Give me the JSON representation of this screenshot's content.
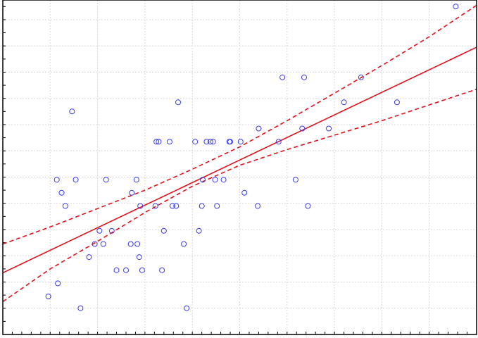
{
  "chart_data": {
    "type": "scatter",
    "title": "",
    "xlabel": "",
    "ylabel": "",
    "xlim": [
      0,
      100
    ],
    "ylim": [
      0,
      25.5
    ],
    "grid": true,
    "legend": "none",
    "colors": {
      "points": "#3a3aef",
      "fit": "#e8101a",
      "confidence_band": "#e8101a",
      "grid": "#d8d8d8"
    },
    "points": [
      {
        "x": 9.6,
        "y": 2.9
      },
      {
        "x": 11.6,
        "y": 3.9
      },
      {
        "x": 16.4,
        "y": 2.0
      },
      {
        "x": 11.4,
        "y": 11.8
      },
      {
        "x": 12.4,
        "y": 10.8
      },
      {
        "x": 13.2,
        "y": 9.8
      },
      {
        "x": 14.6,
        "y": 17.0
      },
      {
        "x": 15.4,
        "y": 11.8
      },
      {
        "x": 18.2,
        "y": 5.9
      },
      {
        "x": 19.4,
        "y": 6.9
      },
      {
        "x": 20.4,
        "y": 7.9
      },
      {
        "x": 21.2,
        "y": 6.9
      },
      {
        "x": 21.8,
        "y": 11.8
      },
      {
        "x": 23.0,
        "y": 7.9
      },
      {
        "x": 24.0,
        "y": 4.9
      },
      {
        "x": 26.0,
        "y": 4.9
      },
      {
        "x": 27.0,
        "y": 6.9
      },
      {
        "x": 27.2,
        "y": 10.8
      },
      {
        "x": 28.2,
        "y": 11.8
      },
      {
        "x": 28.4,
        "y": 6.9
      },
      {
        "x": 28.8,
        "y": 5.9
      },
      {
        "x": 29.0,
        "y": 9.8
      },
      {
        "x": 29.4,
        "y": 4.9
      },
      {
        "x": 32.2,
        "y": 9.8
      },
      {
        "x": 32.4,
        "y": 14.7
      },
      {
        "x": 32.9,
        "y": 14.7
      },
      {
        "x": 33.6,
        "y": 4.9
      },
      {
        "x": 34.0,
        "y": 7.9
      },
      {
        "x": 35.2,
        "y": 14.7
      },
      {
        "x": 35.8,
        "y": 9.8
      },
      {
        "x": 36.6,
        "y": 9.8
      },
      {
        "x": 37.0,
        "y": 17.7
      },
      {
        "x": 38.2,
        "y": 6.9
      },
      {
        "x": 38.8,
        "y": 2.0
      },
      {
        "x": 40.6,
        "y": 14.7
      },
      {
        "x": 41.4,
        "y": 7.9
      },
      {
        "x": 42.0,
        "y": 9.8
      },
      {
        "x": 42.2,
        "y": 11.8
      },
      {
        "x": 43.0,
        "y": 14.7
      },
      {
        "x": 43.8,
        "y": 14.7
      },
      {
        "x": 44.4,
        "y": 14.7
      },
      {
        "x": 44.8,
        "y": 11.8
      },
      {
        "x": 45.2,
        "y": 9.8
      },
      {
        "x": 46.6,
        "y": 11.8
      },
      {
        "x": 47.8,
        "y": 14.7
      },
      {
        "x": 48.0,
        "y": 14.7
      },
      {
        "x": 50.2,
        "y": 14.7
      },
      {
        "x": 51.0,
        "y": 10.8
      },
      {
        "x": 53.8,
        "y": 9.8
      },
      {
        "x": 54.0,
        "y": 15.7
      },
      {
        "x": 58.2,
        "y": 14.7
      },
      {
        "x": 59.0,
        "y": 19.6
      },
      {
        "x": 61.8,
        "y": 11.8
      },
      {
        "x": 63.2,
        "y": 15.7
      },
      {
        "x": 63.6,
        "y": 19.6
      },
      {
        "x": 64.4,
        "y": 9.8
      },
      {
        "x": 68.8,
        "y": 15.7
      },
      {
        "x": 72.0,
        "y": 17.7
      },
      {
        "x": 75.6,
        "y": 19.6
      },
      {
        "x": 83.2,
        "y": 17.7
      },
      {
        "x": 95.6,
        "y": 25.0
      }
    ],
    "fit_line": {
      "x": [
        0,
        100
      ],
      "y": [
        4.7,
        21.9
      ]
    },
    "confidence_band": {
      "x": [
        0,
        10,
        20,
        30,
        40,
        50,
        60,
        70,
        80,
        90,
        100
      ],
      "lower": [
        2.5,
        5.0,
        7.1,
        9.3,
        11.3,
        12.9,
        14.1,
        15.2,
        16.3,
        17.5,
        18.7
      ],
      "upper": [
        6.9,
        8.2,
        9.6,
        11.0,
        12.6,
        14.3,
        16.3,
        18.4,
        20.5,
        22.7,
        25.1
      ]
    }
  }
}
